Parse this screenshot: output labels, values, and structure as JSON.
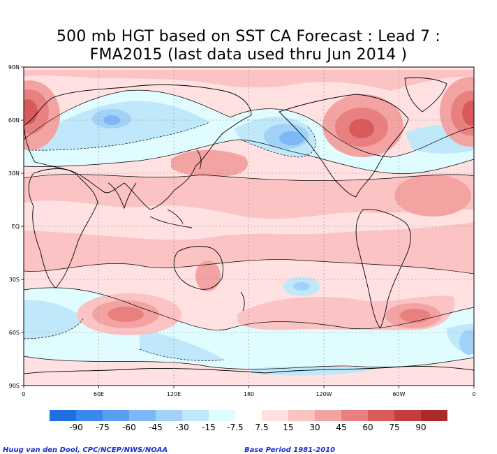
{
  "title": {
    "line1": "500 mb HGT based on SST CA Forecast : Lead 7 :",
    "line2": "FMA2015 (last data used thru Jun 2014 )"
  },
  "axes": {
    "lat_labels": [
      "90N",
      "60N",
      "30N",
      "EQ",
      "30S",
      "60S",
      "90S"
    ],
    "lon_labels": [
      "0",
      "60E",
      "120E",
      "180",
      "120W",
      "60W",
      "0"
    ]
  },
  "colorbar": {
    "labels": [
      "-90",
      "-75",
      "-60",
      "-45",
      "-30",
      "-15",
      "-7.5",
      "7.5",
      "15",
      "30",
      "45",
      "60",
      "75",
      "90"
    ],
    "colors": [
      "#1e6ee6",
      "#3c87ee",
      "#5a9ef2",
      "#7db7f6",
      "#a3d2f8",
      "#bfe8fa",
      "#e0fcff",
      "#ffffff",
      "#ffe1e1",
      "#fbc3c3",
      "#f4a3a3",
      "#e88080",
      "#d85a5a",
      "#c43c3c",
      "#aa2a2a"
    ]
  },
  "credits": {
    "left": "Huug van den Dool, CPC/NCEP/NWS/NOAA",
    "right": "Base Period 1981-2010"
  },
  "palette": {
    "pos1": "#ffe1e1",
    "pos2": "#fbc3c3",
    "pos3": "#f4a3a3",
    "pos4": "#e88080",
    "pos5": "#d85a5a",
    "pos6": "#c43c3c",
    "neg1": "#e0fcff",
    "neg2": "#bfe8fa",
    "neg3": "#a3d2f8",
    "neg4": "#7db7f6",
    "land_outline": "#000000"
  }
}
